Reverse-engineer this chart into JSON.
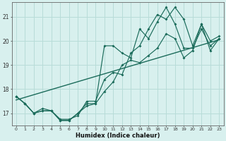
{
  "xlabel": "Humidex (Indice chaleur)",
  "background_color": "#d8f0ee",
  "grid_color": "#b8dcd8",
  "line_color": "#1a6b5a",
  "xlim": [
    -0.5,
    23.5
  ],
  "ylim": [
    16.5,
    21.6
  ],
  "xticks": [
    0,
    1,
    2,
    3,
    4,
    5,
    6,
    7,
    8,
    9,
    10,
    11,
    12,
    13,
    14,
    15,
    16,
    17,
    18,
    19,
    20,
    21,
    22,
    23
  ],
  "xtick_labels": [
    "0",
    "1",
    "2",
    "3",
    "4",
    "5",
    "6",
    "7",
    "8",
    "9",
    "10",
    "11",
    "12",
    "13",
    "14",
    "15",
    "16",
    "17",
    "18",
    "19",
    "20",
    "21",
    "22",
    "23"
  ],
  "yticks": [
    17,
    18,
    19,
    20,
    21
  ],
  "line1_x": [
    0,
    1,
    2,
    3,
    4,
    5,
    6,
    7,
    8,
    9,
    10,
    11,
    12,
    13,
    14,
    15,
    16,
    17,
    18,
    19,
    20,
    21,
    22,
    23
  ],
  "line1_y": [
    17.7,
    17.4,
    17.0,
    17.1,
    17.1,
    16.7,
    16.7,
    17.0,
    17.3,
    17.4,
    17.9,
    18.3,
    19.0,
    19.2,
    19.1,
    19.4,
    19.7,
    20.3,
    20.1,
    19.3,
    19.6,
    20.7,
    19.6,
    20.1
  ],
  "line2_x": [
    0,
    1,
    2,
    3,
    4,
    5,
    6,
    7,
    8,
    9,
    10,
    11,
    12,
    13,
    14,
    15,
    16,
    17,
    18,
    19,
    20,
    21,
    22,
    23
  ],
  "line2_y": [
    17.7,
    17.4,
    17.0,
    17.1,
    17.1,
    16.7,
    16.7,
    17.0,
    17.4,
    17.4,
    19.8,
    19.8,
    19.5,
    19.3,
    20.5,
    20.1,
    20.8,
    21.4,
    20.7,
    19.7,
    19.7,
    20.5,
    19.8,
    20.1
  ],
  "line3_x": [
    0,
    1,
    2,
    3,
    4,
    5,
    6,
    7,
    8,
    9,
    10,
    11,
    12,
    13,
    14,
    15,
    16,
    17,
    18,
    19,
    20,
    21,
    22,
    23
  ],
  "line3_y": [
    17.7,
    17.4,
    17.0,
    17.2,
    17.1,
    16.75,
    16.75,
    16.9,
    17.5,
    17.5,
    18.4,
    18.7,
    18.6,
    19.5,
    19.8,
    20.5,
    21.1,
    20.9,
    21.4,
    20.9,
    19.8,
    20.7,
    20.0,
    20.2
  ],
  "line4_x": [
    0,
    23
  ],
  "line4_y": [
    17.55,
    20.05
  ]
}
